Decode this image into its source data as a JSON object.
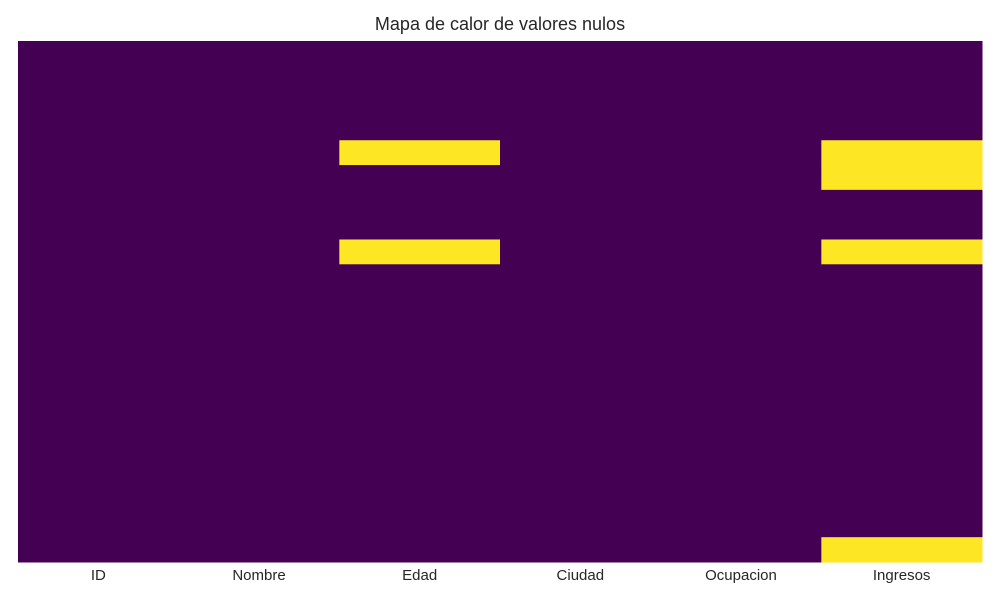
{
  "chart_data": {
    "type": "heatmap",
    "title": "Mapa de calor de valores nulos",
    "xlabel": "",
    "ylabel": "",
    "columns": [
      "ID",
      "Nombre",
      "Edad",
      "Ciudad",
      "Ocupacion",
      "Ingresos"
    ],
    "row_count": 21,
    "row_tick_labels_shown": false,
    "colorbar_shown": false,
    "grid": false,
    "values_note_rows": "1 = null, 0 = present; one array per column, rows top to bottom",
    "values": [
      [
        0,
        0,
        0,
        0,
        0,
        0,
        0,
        0,
        0,
        0,
        0,
        0,
        0,
        0,
        0,
        0,
        0,
        0,
        0,
        0,
        0
      ],
      [
        0,
        0,
        0,
        0,
        0,
        0,
        0,
        0,
        0,
        0,
        0,
        0,
        0,
        0,
        0,
        0,
        0,
        0,
        0,
        0,
        0
      ],
      [
        0,
        0,
        0,
        0,
        1,
        0,
        0,
        0,
        1,
        0,
        0,
        0,
        0,
        0,
        0,
        0,
        0,
        0,
        0,
        0,
        0
      ],
      [
        0,
        0,
        0,
        0,
        0,
        0,
        0,
        0,
        0,
        0,
        0,
        0,
        0,
        0,
        0,
        0,
        0,
        0,
        0,
        0,
        0
      ],
      [
        0,
        0,
        0,
        0,
        0,
        0,
        0,
        0,
        0,
        0,
        0,
        0,
        0,
        0,
        0,
        0,
        0,
        0,
        0,
        0,
        0
      ],
      [
        0,
        0,
        0,
        0,
        1,
        1,
        0,
        0,
        1,
        0,
        0,
        0,
        0,
        0,
        0,
        0,
        0,
        0,
        0,
        0,
        1
      ]
    ],
    "colors": {
      "present": "#440154",
      "null": "#fde725"
    }
  }
}
